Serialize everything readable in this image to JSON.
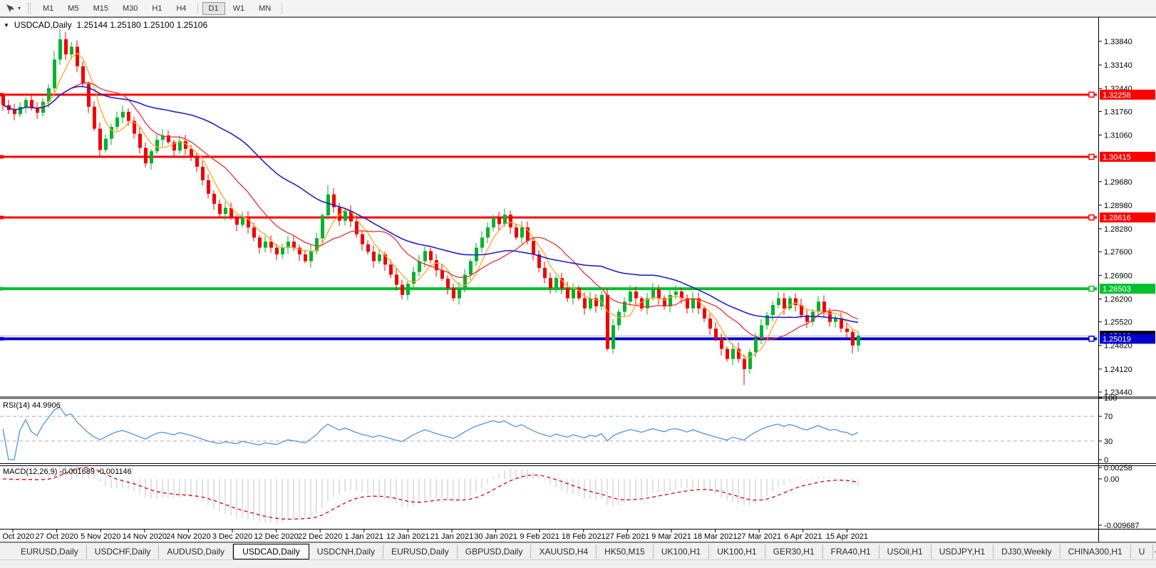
{
  "toolbar": {
    "timeframe_groups": [
      [
        "M1",
        "M5",
        "M15",
        "M30",
        "H1",
        "H4"
      ],
      [
        "D1",
        "W1",
        "MN"
      ]
    ],
    "active_timeframe": "D1"
  },
  "chart": {
    "symbol_title": "USDCAD,Daily",
    "quotes": "1.25144 1.25180 1.25100 1.25106",
    "y_axis_ticks": [
      "1.33840",
      "1.33140",
      "1.32440",
      "1.31760",
      "1.31060",
      "1.29680",
      "1.28980",
      "1.28280",
      "1.27600",
      "1.26900",
      "1.26200",
      "1.25520",
      "1.24820",
      "1.24120",
      "1.23440"
    ],
    "x_axis_ticks": [
      "17 Oct 2020",
      "27 Oct 2020",
      "5 Nov 2020",
      "14 Nov 2020",
      "24 Nov 2020",
      "3 Dec 2020",
      "12 Dec 2020",
      "22 Dec 2020",
      "1 Jan 2021",
      "12 Jan 2021",
      "21 Jan 2021",
      "30 Jan 2021",
      "9 Feb 2021",
      "18 Feb 2021",
      "27 Feb 2021",
      "9 Mar 2021",
      "18 Mar 2021",
      "27 Mar 2021",
      "6 Apr 2021",
      "15 Apr 2021"
    ],
    "hlines": [
      {
        "price": 1.32258,
        "label": "1.32258",
        "color": "#FF0000",
        "thickness": 3
      },
      {
        "price": 1.30415,
        "label": "1.30415",
        "color": "#FF0000",
        "thickness": 3
      },
      {
        "price": 1.28616,
        "label": "1.28616",
        "color": "#FF0000",
        "thickness": 3
      },
      {
        "price": 1.26503,
        "label": "1.26503",
        "color": "#00C02C",
        "thickness": 4
      },
      {
        "price": 1.25019,
        "label": "1.25019",
        "color": "#0000CD",
        "thickness": 4
      }
    ],
    "price_marker": {
      "label": "1.25106",
      "price": 1.25106,
      "bg": "#000000",
      "fg": "#FFFFFF"
    },
    "colors": {
      "bull": "#00B22C",
      "bear": "#F20000",
      "ma_fast": "#FFA520",
      "ma_mid": "#E83030",
      "ma_slow": "#2020C8",
      "current_price_line": "#BBBBBB"
    },
    "first_open": 1.3225,
    "candle_closes": [
      1.3195,
      1.318,
      1.3168,
      1.319,
      1.321,
      1.3185,
      1.3172,
      1.3205,
      1.3245,
      1.333,
      1.339,
      1.3345,
      1.3368,
      1.331,
      1.3258,
      1.319,
      1.3125,
      1.3062,
      1.3095,
      1.313,
      1.3158,
      1.3175,
      1.3148,
      1.311,
      1.3068,
      1.3022,
      1.3058,
      1.3092,
      1.3105,
      1.3085,
      1.306,
      1.3088,
      1.3065,
      1.3042,
      1.3012,
      1.2972,
      1.2932,
      1.2902,
      1.2872,
      1.289,
      1.2862,
      1.284,
      1.2862,
      1.2832,
      1.2802,
      1.2772,
      1.279,
      1.2772,
      1.2752,
      1.2772,
      1.279,
      1.2772,
      1.2752,
      1.2732,
      1.2762,
      1.28,
      1.2868,
      1.293,
      1.2892,
      1.2852,
      1.288,
      1.285,
      1.2812,
      1.2782,
      1.276,
      1.2732,
      1.2752,
      1.2722,
      1.2692,
      1.2662,
      1.2632,
      1.2665,
      1.27,
      1.2732,
      1.2762,
      1.2735,
      1.2705,
      1.268,
      1.2652,
      1.2622,
      1.2652,
      1.2692,
      1.2732,
      1.2772,
      1.2802,
      1.2832,
      1.2862,
      1.2842,
      1.287,
      1.2832,
      1.2802,
      1.2832,
      1.2792,
      1.2752,
      1.2712,
      1.2682,
      1.2652,
      1.2682,
      1.2652,
      1.2622,
      1.2652,
      1.2622,
      1.2592,
      1.2622,
      1.2598,
      1.2632,
      1.2472,
      1.2542,
      1.2582,
      1.2612,
      1.2642,
      1.2622,
      1.2592,
      1.2622,
      1.2648,
      1.2622,
      1.2598,
      1.2632,
      1.2642,
      1.2622,
      1.2592,
      1.2622,
      1.2592,
      1.2562,
      1.2532,
      1.2502,
      1.2472,
      1.2442,
      1.2472,
      1.2442,
      1.2412,
      1.2462,
      1.2502,
      1.2542,
      1.2572,
      1.2602,
      1.2622,
      1.2592,
      1.2622,
      1.2602,
      1.2572,
      1.2552,
      1.2582,
      1.2612,
      1.2582,
      1.2552,
      1.2562,
      1.2532,
      1.2522,
      1.2482,
      1.2511
    ],
    "wick_overrides": {
      "9": {
        "h": 1.3355
      },
      "10": {
        "h": 1.342
      },
      "11": {
        "h": 1.3412
      },
      "17": {
        "l": 1.304
      },
      "57": {
        "h": 1.2958
      },
      "106": {
        "l": 1.2465
      },
      "130": {
        "l": 1.2365
      },
      "149": {
        "l": 1.2458
      }
    }
  },
  "rsi": {
    "label": "RSI(14) 44.9906",
    "y_ticks": [
      {
        "value": 100,
        "label": "100"
      },
      {
        "value": 70,
        "label": "70"
      },
      {
        "value": 30,
        "label": "30"
      },
      {
        "value": 0,
        "label": "0"
      }
    ],
    "levels": [
      70,
      30
    ],
    "line_color": "#4F94E0"
  },
  "macd": {
    "label": "MACD(12,26,9) -0.001689 -0.001146",
    "y_ticks": [
      {
        "value": 0.00258,
        "label": "0.00258"
      },
      {
        "value": 0,
        "label": "0.00"
      },
      {
        "value": -0.009687,
        "label": "-0.009687"
      }
    ],
    "histogram_color": "#C4C4C4",
    "signal_color": "#E00000"
  },
  "tabs": {
    "items": [
      "EURUSD,Daily",
      "USDCHF,Daily",
      "AUDUSD,Daily",
      "USDCAD,Daily",
      "USDCNH,Daily",
      "EURUSD,Daily",
      "GBPUSD,Daily",
      "XAUUSD,H4",
      "HK50,M15",
      "UK100,H1",
      "UK100,H1",
      "GER30,H1",
      "FRA40,H1",
      "USOil,H1",
      "USDJPY,H1",
      "DJ30,Weekly",
      "CHINA300,H1",
      "U"
    ],
    "active_index": 3,
    "scroll_left_glyph": "◄",
    "scroll_right_glyph": "►"
  }
}
